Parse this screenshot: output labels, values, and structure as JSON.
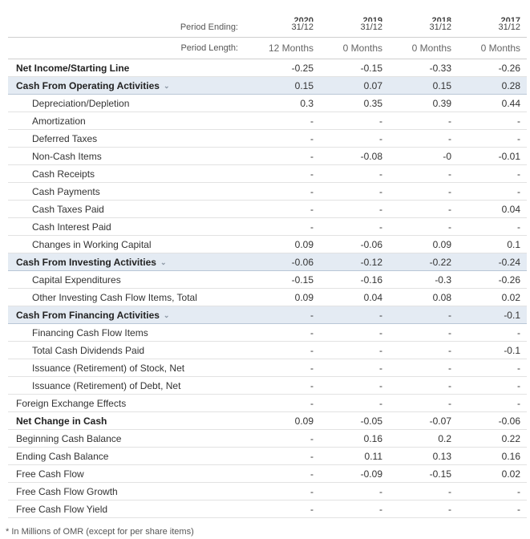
{
  "header": {
    "period_ending_label": "Period Ending:",
    "period_length_label": "Period Length:",
    "columns": [
      {
        "year": "2020",
        "date": "31/12",
        "length": "12 Months"
      },
      {
        "year": "2019",
        "date": "31/12",
        "length": "0 Months"
      },
      {
        "year": "2018",
        "date": "31/12",
        "length": "0 Months"
      },
      {
        "year": "2017",
        "date": "31/12",
        "length": "0 Months"
      }
    ]
  },
  "rows": [
    {
      "label": "Net Income/Starting Line",
      "values": [
        "-0.25",
        "-0.15",
        "-0.33",
        "-0.26"
      ],
      "style": "bold"
    },
    {
      "label": "Cash From Operating Activities",
      "values": [
        "0.15",
        "0.07",
        "0.15",
        "0.28"
      ],
      "style": "group"
    },
    {
      "label": "Depreciation/Depletion",
      "values": [
        "0.3",
        "0.35",
        "0.39",
        "0.44"
      ],
      "style": "sub"
    },
    {
      "label": "Amortization",
      "values": [
        "-",
        "-",
        "-",
        "-"
      ],
      "style": "sub"
    },
    {
      "label": "Deferred Taxes",
      "values": [
        "-",
        "-",
        "-",
        "-"
      ],
      "style": "sub"
    },
    {
      "label": "Non-Cash Items",
      "values": [
        "-",
        "-0.08",
        "-0",
        "-0.01"
      ],
      "style": "sub"
    },
    {
      "label": "Cash Receipts",
      "values": [
        "-",
        "-",
        "-",
        "-"
      ],
      "style": "sub"
    },
    {
      "label": "Cash Payments",
      "values": [
        "-",
        "-",
        "-",
        "-"
      ],
      "style": "sub"
    },
    {
      "label": "Cash Taxes Paid",
      "values": [
        "-",
        "-",
        "-",
        "0.04"
      ],
      "style": "sub"
    },
    {
      "label": "Cash Interest Paid",
      "values": [
        "-",
        "-",
        "-",
        "-"
      ],
      "style": "sub"
    },
    {
      "label": "Changes in Working Capital",
      "values": [
        "0.09",
        "-0.06",
        "0.09",
        "0.1"
      ],
      "style": "sub"
    },
    {
      "label": "Cash From Investing Activities",
      "values": [
        "-0.06",
        "-0.12",
        "-0.22",
        "-0.24"
      ],
      "style": "group"
    },
    {
      "label": "Capital Expenditures",
      "values": [
        "-0.15",
        "-0.16",
        "-0.3",
        "-0.26"
      ],
      "style": "sub"
    },
    {
      "label": "Other Investing Cash Flow Items, Total",
      "values": [
        "0.09",
        "0.04",
        "0.08",
        "0.02"
      ],
      "style": "sub"
    },
    {
      "label": "Cash From Financing Activities",
      "values": [
        "-",
        "-",
        "-",
        "-0.1"
      ],
      "style": "group"
    },
    {
      "label": "Financing Cash Flow Items",
      "values": [
        "-",
        "-",
        "-",
        "-"
      ],
      "style": "sub"
    },
    {
      "label": "Total Cash Dividends Paid",
      "values": [
        "-",
        "-",
        "-",
        "-0.1"
      ],
      "style": "sub"
    },
    {
      "label": "Issuance (Retirement) of Stock, Net",
      "values": [
        "-",
        "-",
        "-",
        "-"
      ],
      "style": "sub"
    },
    {
      "label": "Issuance (Retirement) of Debt, Net",
      "values": [
        "-",
        "-",
        "-",
        "-"
      ],
      "style": "sub"
    },
    {
      "label": "Foreign Exchange Effects",
      "values": [
        "-",
        "-",
        "-",
        "-"
      ],
      "style": "plain"
    },
    {
      "label": "Net Change in Cash",
      "values": [
        "0.09",
        "-0.05",
        "-0.07",
        "-0.06"
      ],
      "style": "bold"
    },
    {
      "label": "Beginning Cash Balance",
      "values": [
        "-",
        "0.16",
        "0.2",
        "0.22"
      ],
      "style": "plain"
    },
    {
      "label": "Ending Cash Balance",
      "values": [
        "-",
        "0.11",
        "0.13",
        "0.16"
      ],
      "style": "plain"
    },
    {
      "label": "Free Cash Flow",
      "values": [
        "-",
        "-0.09",
        "-0.15",
        "0.02"
      ],
      "style": "plain"
    },
    {
      "label": "Free Cash Flow Growth",
      "values": [
        "-",
        "-",
        "-",
        "-"
      ],
      "style": "plain"
    },
    {
      "label": "Free Cash Flow Yield",
      "values": [
        "-",
        "-",
        "-",
        "-"
      ],
      "style": "plain"
    }
  ],
  "icons": {
    "expand": "chevron-down-icon"
  },
  "footnote": "* In Millions of OMR (except for per share items)"
}
